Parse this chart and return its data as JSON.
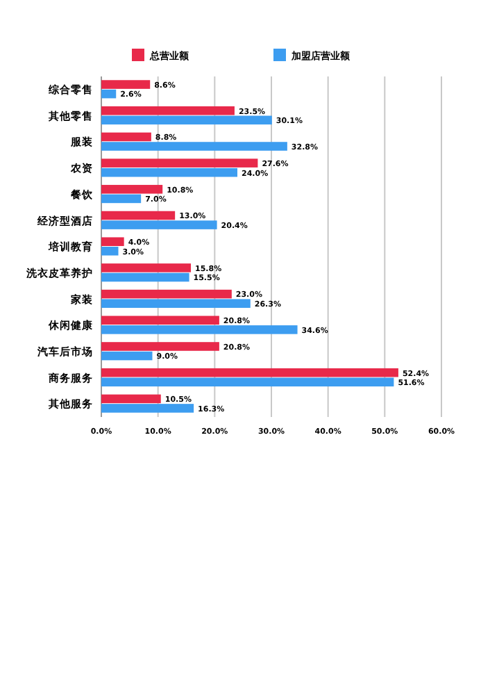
{
  "chart_data": {
    "type": "bar",
    "orientation": "horizontal",
    "categories": [
      "综合零售",
      "其他零售",
      "服装",
      "农资",
      "餐饮",
      "经济型酒店",
      "培训教育",
      "洗衣皮革养护",
      "家装",
      "休闲健康",
      "汽车后市场",
      "商务服务",
      "其他服务"
    ],
    "series": [
      {
        "name": "总营业额",
        "color": "#e8294a",
        "values": [
          8.6,
          23.5,
          8.8,
          27.6,
          10.8,
          13.0,
          4.0,
          15.8,
          23.0,
          20.8,
          20.8,
          52.4,
          10.5
        ],
        "value_labels": [
          "8.6%",
          "23.5%",
          "8.8%",
          "27.6%",
          "10.8%",
          "13.0%",
          "4.0%",
          "15.8%",
          "23.0%",
          "20.8%",
          "20.8%",
          "52.4%",
          "10.5%"
        ]
      },
      {
        "name": "加盟店营业额",
        "color": "#3d9df0",
        "values": [
          2.6,
          30.1,
          32.8,
          24.0,
          7.0,
          20.4,
          3.0,
          15.5,
          26.3,
          34.6,
          9.0,
          51.6,
          16.3
        ],
        "value_labels": [
          "2.6%",
          "30.1%",
          "32.8%",
          "24.0%",
          "7.0%",
          "20.4%",
          "3.0%",
          "15.5%",
          "26.3%",
          "34.6%",
          "9.0%",
          "51.6%",
          "16.3%"
        ]
      }
    ],
    "xlim": [
      0,
      60
    ],
    "xticks": [
      {
        "value": 0,
        "label": "0.0%"
      },
      {
        "value": 10,
        "label": "10.0%"
      },
      {
        "value": 20,
        "label": "20.0%"
      },
      {
        "value": 30,
        "label": "30.0%"
      },
      {
        "value": 40,
        "label": "40.0%"
      },
      {
        "value": 50,
        "label": "50.0%"
      },
      {
        "value": 60,
        "label": "60.0%"
      }
    ],
    "grid": "x",
    "legend": "top"
  }
}
